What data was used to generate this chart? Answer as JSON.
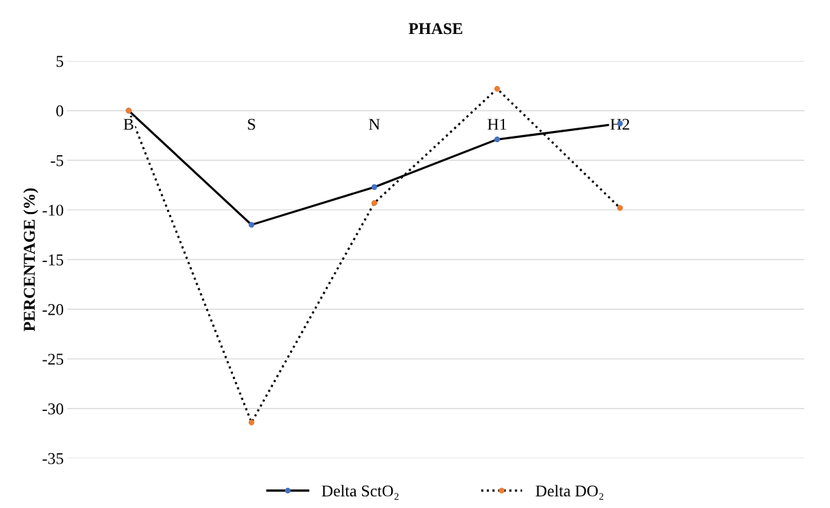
{
  "chart_data": {
    "type": "line",
    "title": "PHASE",
    "ylabel": "PERCENTAGE (%)",
    "categories": [
      "B",
      "S",
      "N",
      "H1",
      "H2",
      null
    ],
    "series": [
      {
        "name": "Delta SctO₂",
        "color": "#4472c4",
        "line_style": "solid",
        "values": [
          0,
          -11.5,
          -7.7,
          -2.9,
          -1.3,
          null
        ]
      },
      {
        "name": "Delta DO₂",
        "color": "#ed7d31",
        "line_style": "dotted",
        "values": [
          0,
          -31.4,
          -9.3,
          2.2,
          -9.8,
          null
        ]
      }
    ],
    "ylim": [
      -35,
      5
    ],
    "yticks": [
      -35,
      -30,
      -25,
      -20,
      -15,
      -10,
      -5,
      0,
      5
    ],
    "grid": "y",
    "legend": "bottom",
    "marker": "circle"
  }
}
